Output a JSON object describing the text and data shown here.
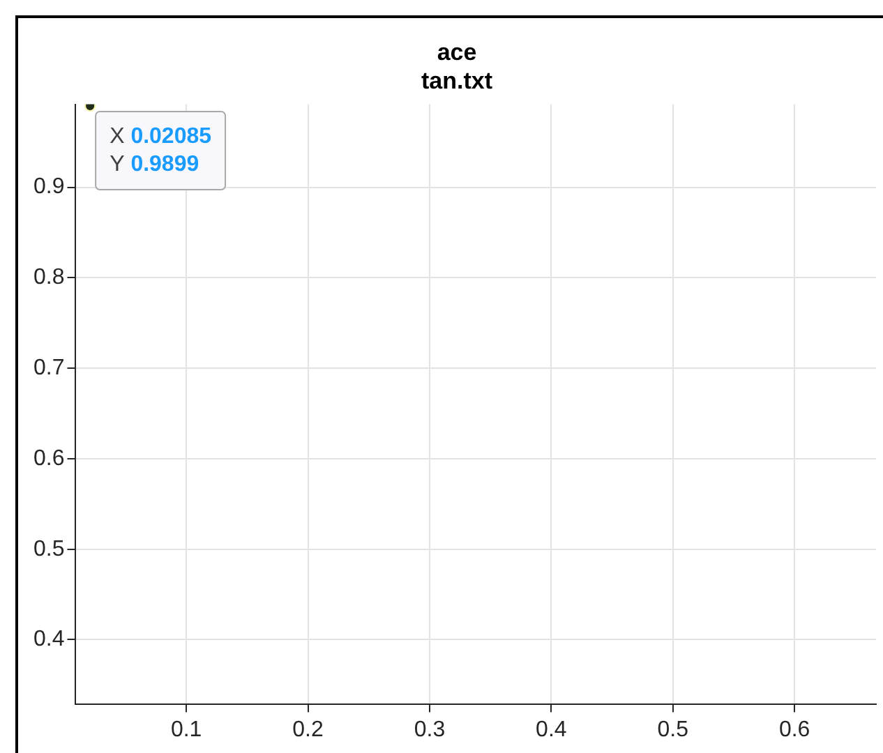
{
  "chart_data": {
    "type": "scatter",
    "title": [
      "ace",
      "tan.txt"
    ],
    "x": [
      0.02085
    ],
    "series": [
      {
        "color": "#1f2a1a",
        "values": [
          0.9899
        ]
      }
    ],
    "xlim": [
      0.009,
      0.667
    ],
    "ylim": [
      0.329,
      0.9917
    ],
    "xticks": [
      0.1,
      0.2,
      0.3,
      0.4,
      0.5,
      0.6
    ],
    "yticks": [
      0.4,
      0.5,
      0.6,
      0.7,
      0.8,
      0.9
    ],
    "grid": true,
    "marker": "circle",
    "annotations": [
      {
        "text": "X 0.02085\nY 0.9899",
        "x": 0.02085,
        "y": 0.9899
      }
    ]
  }
}
